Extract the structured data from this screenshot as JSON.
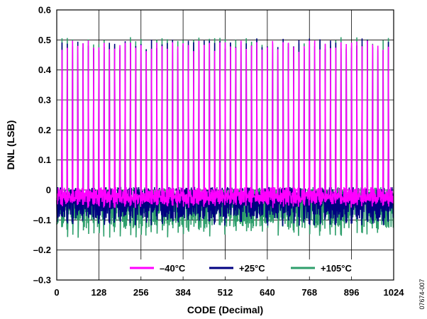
{
  "chart_data": {
    "type": "line",
    "xlabel": "CODE (Decimal)",
    "ylabel": "DNL (LSB)",
    "xlim": [
      0,
      1024
    ],
    "ylim": [
      -0.3,
      0.6
    ],
    "x_ticks": [
      0,
      128,
      256,
      384,
      512,
      640,
      768,
      896,
      1024
    ],
    "y_ticks": [
      -0.3,
      -0.2,
      -0.1,
      0,
      0.1,
      0.2,
      0.3,
      0.4,
      0.5,
      0.6
    ],
    "y_tick_labels": [
      "–0.3",
      "–0.2",
      "–0.1",
      "0",
      "0.1",
      "0.2",
      "0.3",
      "0.4",
      "0.5",
      "0.6"
    ],
    "grid": true,
    "legend_position": "bottom-center",
    "pattern": {
      "peak_period_codes": 16,
      "peak_value_range": [
        0.46,
        0.5
      ],
      "baseline_ripple": [
        -0.03,
        0.01
      ]
    },
    "series": [
      {
        "name": "–40°C",
        "color": "#FF00FF",
        "min_dip": -0.06,
        "peak": 0.47
      },
      {
        "name": "+25°C",
        "color": "#000080",
        "min_dip": -0.12,
        "peak": 0.48
      },
      {
        "name": "+105°C",
        "color": "#2E9E6B",
        "min_dip": -0.16,
        "peak": 0.49
      }
    ],
    "figure_id": "07674-007"
  }
}
